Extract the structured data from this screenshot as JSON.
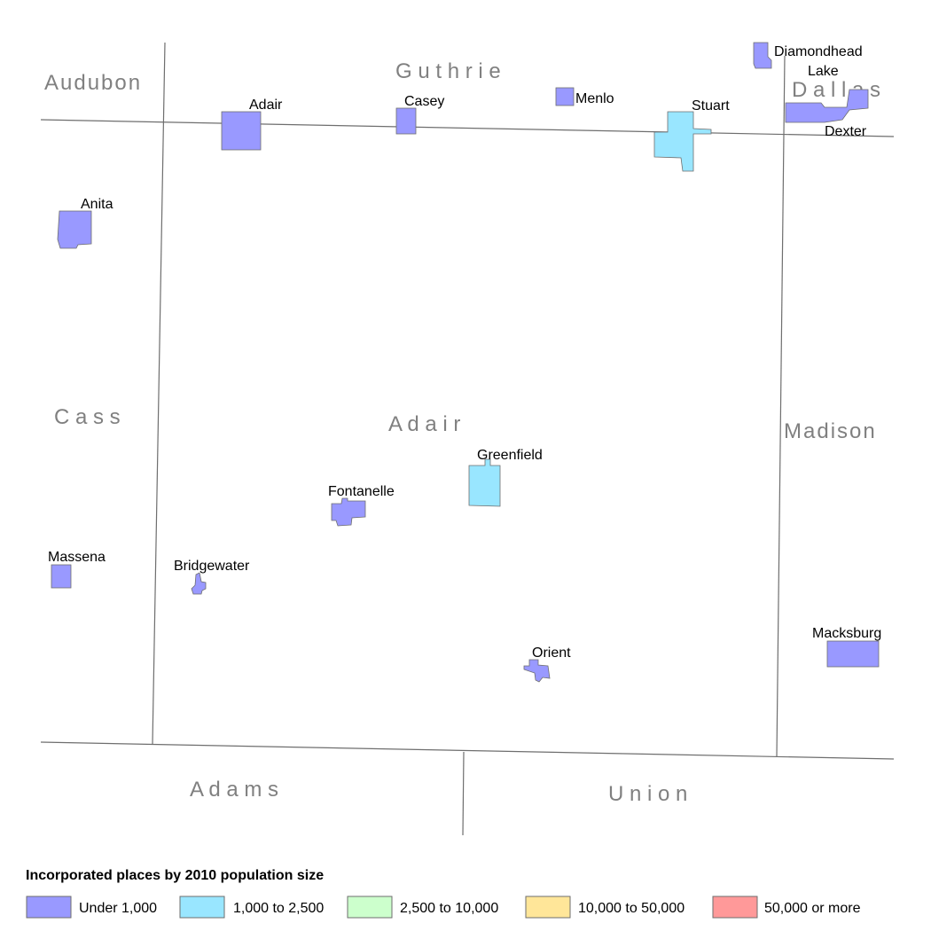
{
  "counties": {
    "audubon": "Audubon",
    "guthrie": "G u t h r i e",
    "dallas": "D a l l a s",
    "cass": "C a s s",
    "adair": "A d a i r",
    "madison": "Madison",
    "adams": "A d a m s",
    "union": "U n i o n"
  },
  "places": {
    "adair": {
      "name": "Adair",
      "category": "under_1000"
    },
    "casey": {
      "name": "Casey",
      "category": "under_1000"
    },
    "menlo": {
      "name": "Menlo",
      "category": "under_1000"
    },
    "stuart": {
      "name": "Stuart",
      "category": "1000_2500"
    },
    "diamondhead": {
      "name_line1": "Diamondhead",
      "name_line2": "Lake",
      "category": "under_1000"
    },
    "dexter": {
      "name": "Dexter",
      "category": "under_1000"
    },
    "anita": {
      "name": "Anita",
      "category": "under_1000"
    },
    "greenfield": {
      "name": "Greenfield",
      "category": "1000_2500"
    },
    "fontanelle": {
      "name": "Fontanelle",
      "category": "under_1000"
    },
    "massena": {
      "name": "Massena",
      "category": "under_1000"
    },
    "bridgewater": {
      "name": "Bridgewater",
      "category": "under_1000"
    },
    "orient": {
      "name": "Orient",
      "category": "under_1000"
    },
    "macksburg": {
      "name": "Macksburg",
      "category": "under_1000"
    }
  },
  "legend": {
    "title": "Incorporated places by 2010 population size",
    "items": [
      {
        "label": "Under 1,000",
        "color": "#9999ff"
      },
      {
        "label": "1,000 to 2,500",
        "color": "#99e6ff"
      },
      {
        "label": "2,500 to 10,000",
        "color": "#ccffcc"
      },
      {
        "label": "10,000 to 50,000",
        "color": "#ffe699"
      },
      {
        "label": "50,000 or more",
        "color": "#ff9999"
      }
    ]
  },
  "colors": {
    "under_1000": "#9999ff",
    "1000_2500": "#99e6ff",
    "boundary": "#6e6e6e",
    "county_label": "#808080"
  }
}
